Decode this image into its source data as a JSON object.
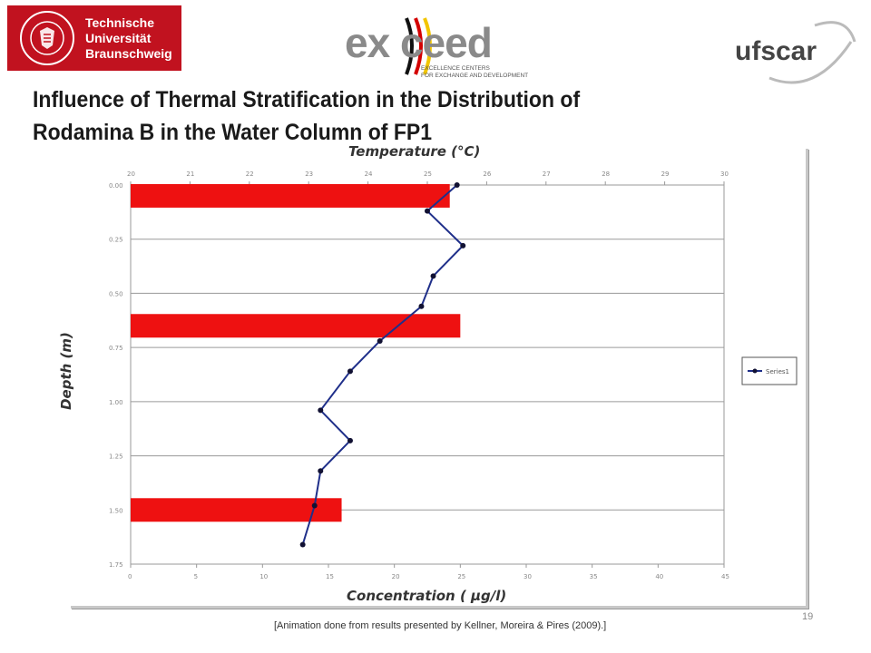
{
  "logos": {
    "tu": {
      "line1": "Technische",
      "line2": "Universität",
      "line3": "Braunschweig",
      "color": "#c1121f"
    },
    "exceed": {
      "word": "ex ceed",
      "subtitle_line1": "EXCELLENCE CENTERS",
      "subtitle_line2": "FOR EXCHANGE AND DEVELOPMENT"
    },
    "ufscar": {
      "word": "ufscar"
    }
  },
  "slide": {
    "title": "Influence of Thermal Stratification  in the Distribution of\nRodamina B in the Water Column of FP1",
    "citation": "[Animation done from results presented by Kellner, Moreira & Pires (2009).]",
    "page_number": "19"
  },
  "chart_data": {
    "type": "bar",
    "orientation": "horizontal",
    "top_axis": {
      "title": "Temperature (°C)",
      "ticks": [
        "20",
        "21",
        "22",
        "23",
        "24",
        "25",
        "26",
        "27",
        "28",
        "29",
        "30"
      ],
      "range": [
        20,
        30
      ]
    },
    "bottom_axis": {
      "title": "Concentration ( μg/l)",
      "ticks": [
        "0",
        "5",
        "10",
        "15",
        "20",
        "25",
        "30",
        "35",
        "40",
        "45"
      ],
      "range": [
        0,
        45
      ]
    },
    "y_axis": {
      "title": "Depth (m)",
      "ticks": [
        "0.00",
        "0.25",
        "0.50",
        "0.75",
        "1.00",
        "1.25",
        "1.50",
        "1.75"
      ],
      "range": [
        0,
        1.75
      ],
      "inverted": true
    },
    "concentration_bars": {
      "color": "#ee1111",
      "depths": [
        0.05,
        0.65,
        1.5
      ],
      "values": [
        24.2,
        25.0,
        16.0
      ]
    },
    "temperature_profile": {
      "legend_label": "Series1",
      "color": "#1f2f8a",
      "depths": [
        0.0,
        0.12,
        0.28,
        0.42,
        0.56,
        0.72,
        0.86,
        1.04,
        1.18,
        1.32,
        1.48,
        1.66
      ],
      "values": [
        25.5,
        25.0,
        25.6,
        25.1,
        24.9,
        24.2,
        23.7,
        23.2,
        23.7,
        23.2,
        23.1,
        22.9
      ]
    },
    "legend_placement": "right",
    "grid": true
  }
}
